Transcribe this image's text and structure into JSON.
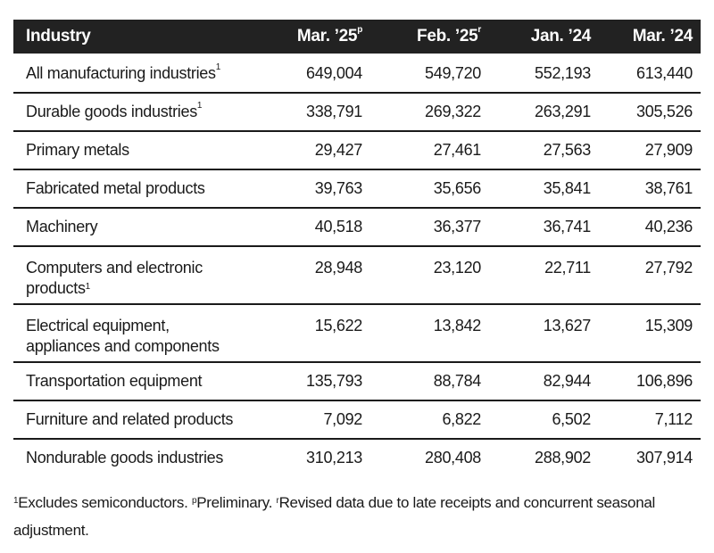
{
  "table": {
    "headers": [
      {
        "label": "Industry",
        "sup": ""
      },
      {
        "label": "Mar. ’25",
        "sup": "p"
      },
      {
        "label": "Feb. ’25",
        "sup": "r"
      },
      {
        "label": "Jan. ’24",
        "sup": ""
      },
      {
        "label": "Mar. ’24",
        "sup": ""
      }
    ],
    "rows": [
      {
        "industry": "All manufacturing industries",
        "sup": "1",
        "values": [
          "649,004",
          "549,720",
          "552,193",
          "613,440"
        ]
      },
      {
        "industry": "Durable goods industries",
        "sup": "1",
        "values": [
          "338,791",
          "269,322",
          "263,291",
          "305,526"
        ]
      },
      {
        "industry": "Primary metals",
        "sup": "",
        "values": [
          "29,427",
          "27,461",
          "27,563",
          "27,909"
        ]
      },
      {
        "industry": "Fabricated metal products",
        "sup": "",
        "values": [
          "39,763",
          "35,656",
          "35,841",
          "38,761"
        ]
      },
      {
        "industry": "Machinery",
        "sup": "",
        "values": [
          "40,518",
          "36,377",
          "36,741",
          "40,236"
        ]
      },
      {
        "industry": "Computers and electronic products",
        "sup": "1",
        "values": [
          "28,948",
          "23,120",
          "22,711",
          "27,792"
        ]
      },
      {
        "industry": "Electrical equipment, appliances and components",
        "sup": "",
        "values": [
          "15,622",
          "13,842",
          "13,627",
          "15,309"
        ]
      },
      {
        "industry": "Transportation equipment",
        "sup": "",
        "values": [
          "135,793",
          "88,784",
          "82,944",
          "106,896"
        ]
      },
      {
        "industry": "Furniture and related products",
        "sup": "",
        "values": [
          "7,092",
          "6,822",
          "6,502",
          "7,112"
        ]
      },
      {
        "industry": "Nondurable goods industries",
        "sup": "",
        "values": [
          "310,213",
          "280,408",
          "288,902",
          "307,914"
        ]
      }
    ]
  },
  "footnote": [
    {
      "sup": "1",
      "text": "Excludes semiconductors. "
    },
    {
      "sup": "p",
      "text": "Preliminary. "
    },
    {
      "sup": "r",
      "text": "Revised data due to late receipts and concurrent seasonal adjustment."
    }
  ],
  "colors": {
    "header_bg": "#222222",
    "header_text": "#ffffff",
    "rule": "#1a1a1a"
  }
}
